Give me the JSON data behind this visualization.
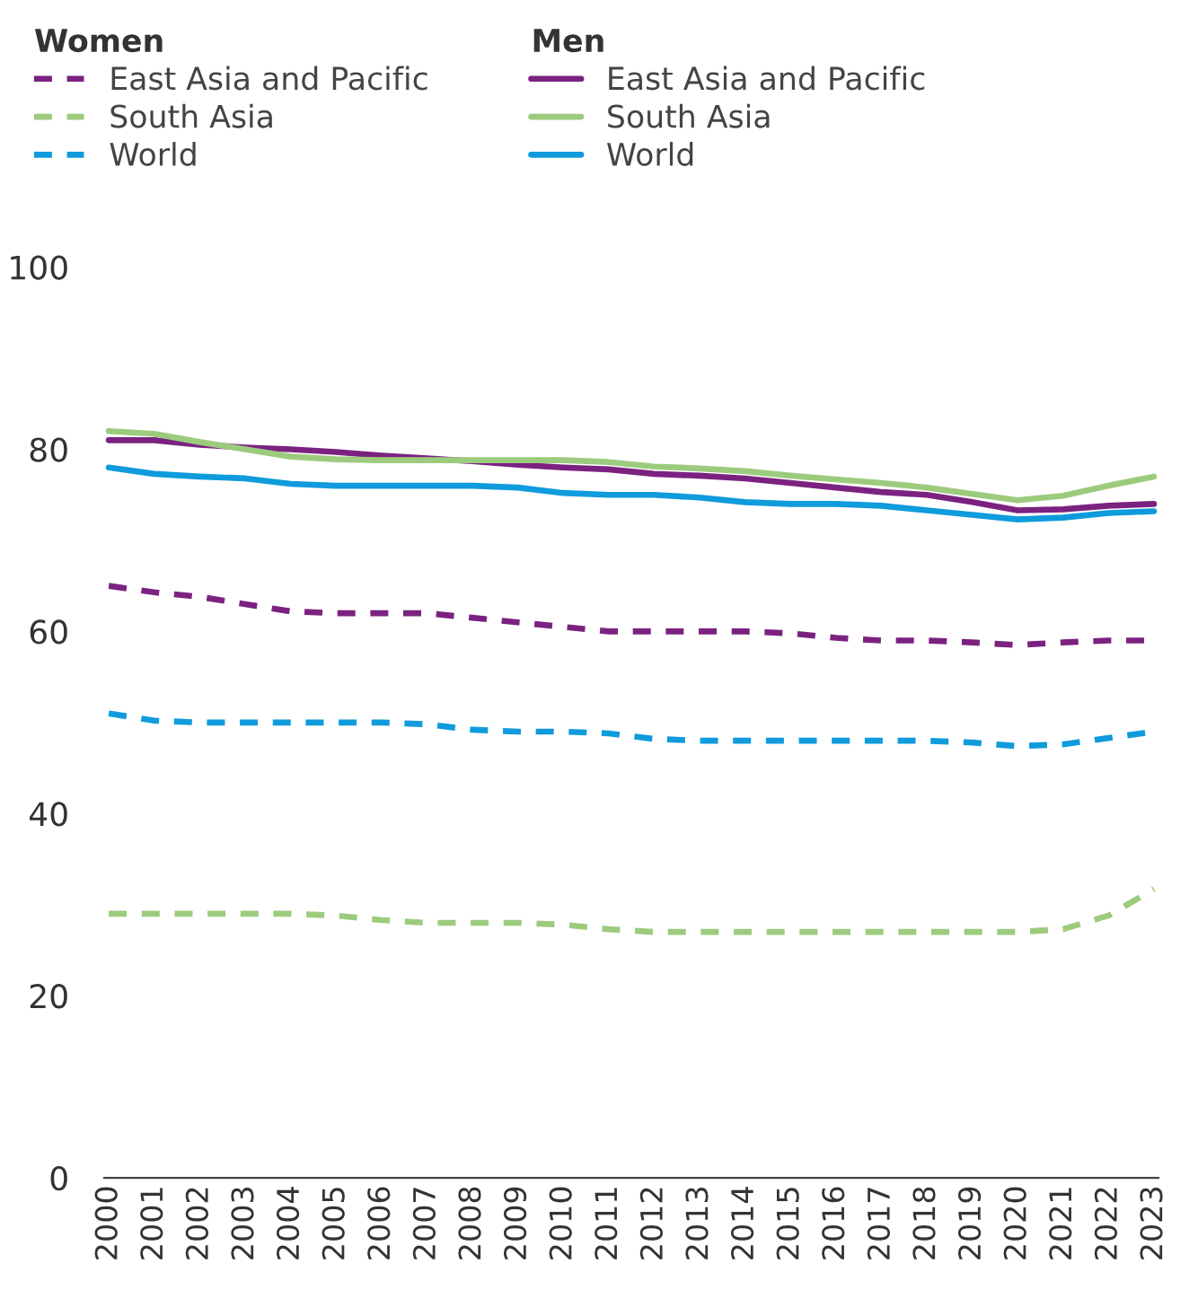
{
  "chart_data": {
    "type": "line",
    "categories": [
      "2000",
      "2001",
      "2002",
      "2003",
      "2004",
      "2005",
      "2006",
      "2007",
      "2008",
      "2009",
      "2010",
      "2011",
      "2012",
      "2013",
      "2014",
      "2015",
      "2016",
      "2017",
      "2018",
      "2019",
      "2020",
      "2021",
      "2022",
      "2023"
    ],
    "legend_title": [
      "Women",
      "Men"
    ],
    "legend": "top left",
    "ylim": [
      0,
      100
    ],
    "yticks": [
      0,
      20,
      40,
      60,
      80,
      100
    ],
    "grid": false,
    "series": [
      {
        "name": "East Asia and Pacific",
        "color": "#7b2281",
        "line_style": "dashed",
        "values": [
          65,
          64.3,
          63.8,
          63,
          62.2,
          62,
          62,
          62,
          61.5,
          61,
          60.5,
          60,
          60,
          60,
          60,
          59.8,
          59.3,
          59,
          59,
          58.8,
          58.5,
          58.8,
          59,
          59
        ]
      },
      {
        "name": "South Asia",
        "color": "#9dcb7e",
        "line_style": "dashed",
        "values": [
          29,
          29,
          29,
          29,
          29,
          28.8,
          28.3,
          28,
          28,
          28,
          27.8,
          27.3,
          27,
          27,
          27,
          27,
          27,
          27,
          27,
          27,
          27,
          27.3,
          28.8,
          31.7
        ]
      },
      {
        "name": "World",
        "color": "#0f9bdc",
        "line_style": "dashed",
        "values": [
          51,
          50.2,
          50,
          50,
          50,
          50,
          50,
          49.8,
          49.2,
          49,
          49,
          48.8,
          48.2,
          48,
          48,
          48,
          48,
          48,
          48,
          47.8,
          47.4,
          47.6,
          48.3,
          49
        ]
      },
      {
        "name": "East Asia and Pacific",
        "color": "#7b2281",
        "line_style": "solid",
        "values": [
          81,
          81,
          80.5,
          80.2,
          80,
          79.7,
          79.3,
          79,
          78.7,
          78.3,
          78,
          77.8,
          77.3,
          77.1,
          76.8,
          76.3,
          75.8,
          75.3,
          75,
          74.2,
          73.3,
          73.4,
          73.8,
          74
        ]
      },
      {
        "name": "South Asia",
        "color": "#9dcb7e",
        "line_style": "solid",
        "values": [
          82,
          81.7,
          80.8,
          80,
          79.2,
          78.9,
          78.8,
          78.8,
          78.8,
          78.8,
          78.8,
          78.6,
          78.1,
          77.9,
          77.6,
          77.1,
          76.7,
          76.3,
          75.8,
          75.1,
          74.4,
          74.9,
          76,
          77
        ]
      },
      {
        "name": "World",
        "color": "#0f9bdc",
        "line_style": "solid",
        "values": [
          78,
          77.3,
          77,
          76.8,
          76.2,
          76,
          76,
          76,
          76,
          75.8,
          75.2,
          75,
          75,
          74.7,
          74.2,
          74,
          74,
          73.8,
          73.3,
          72.8,
          72.3,
          72.5,
          73,
          73.2
        ]
      }
    ]
  }
}
